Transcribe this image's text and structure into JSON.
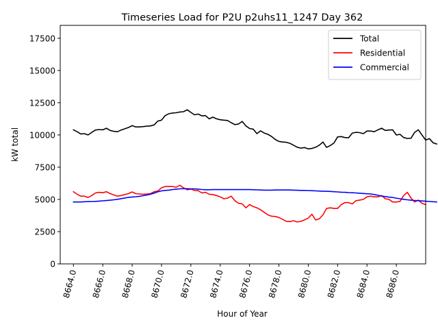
{
  "chart_data": {
    "type": "line",
    "title": "Timeseries Load for P2U p2uhs11_1247  Day 362",
    "xlabel": "Hour of Year",
    "ylabel": "kW total",
    "xlim": [
      8663.1,
      8688.0
    ],
    "ylim": [
      0,
      18500
    ],
    "x_ticks": [
      8664,
      8666,
      8668,
      8670,
      8672,
      8674,
      8676,
      8678,
      8680,
      8682,
      8684,
      8686
    ],
    "x_tick_labels": [
      "8664.0",
      "8666.0",
      "8668.0",
      "8670.0",
      "8672.0",
      "8674.0",
      "8676.0",
      "8678.0",
      "8680.0",
      "8682.0",
      "8684.0",
      "8686.0"
    ],
    "y_ticks": [
      0,
      2500,
      5000,
      7500,
      10000,
      12500,
      15000,
      17500
    ],
    "y_tick_labels": [
      "0",
      "2500",
      "5000",
      "7500",
      "10000",
      "12500",
      "15000",
      "17500"
    ],
    "legend_position": "top-right",
    "x_start": 8664.0,
    "x_step": 0.25,
    "series": [
      {
        "name": "Total",
        "color": "#000000",
        "values": [
          10400,
          10250,
          10080,
          10100,
          10000,
          10200,
          10380,
          10420,
          10400,
          10520,
          10350,
          10280,
          10250,
          10380,
          10480,
          10580,
          10720,
          10620,
          10620,
          10650,
          10680,
          10700,
          10780,
          11080,
          11150,
          11500,
          11650,
          11700,
          11720,
          11780,
          11800,
          11950,
          11750,
          11560,
          11620,
          11480,
          11500,
          11250,
          11380,
          11250,
          11180,
          11150,
          11120,
          10950,
          10800,
          10850,
          11050,
          10700,
          10500,
          10450,
          10100,
          10320,
          10150,
          10050,
          9880,
          9650,
          9500,
          9450,
          9430,
          9350,
          9200,
          9050,
          8980,
          9020,
          8920,
          8950,
          9050,
          9200,
          9450,
          9030,
          9180,
          9380,
          9850,
          9870,
          9800,
          9780,
          10150,
          10200,
          10180,
          10100,
          10300,
          10300,
          10250,
          10400,
          10520,
          10350,
          10380,
          10400,
          10000,
          10050,
          9800,
          9730,
          9750,
          10200,
          10400,
          10000,
          9600,
          9720,
          9400,
          9300
        ]
      },
      {
        "name": "Residential",
        "color": "#ff0000",
        "values": [
          5600,
          5400,
          5250,
          5250,
          5150,
          5300,
          5500,
          5550,
          5520,
          5600,
          5450,
          5350,
          5250,
          5300,
          5380,
          5450,
          5580,
          5450,
          5420,
          5400,
          5420,
          5450,
          5600,
          5650,
          5900,
          6000,
          6000,
          6000,
          5950,
          6100,
          5900,
          5750,
          5800,
          5700,
          5680,
          5500,
          5550,
          5400,
          5380,
          5300,
          5200,
          5050,
          5100,
          5250,
          4900,
          4700,
          4650,
          4350,
          4600,
          4450,
          4350,
          4200,
          4000,
          3800,
          3700,
          3680,
          3600,
          3450,
          3300,
          3280,
          3350,
          3250,
          3300,
          3420,
          3550,
          3850,
          3400,
          3500,
          3800,
          4300,
          4350,
          4300,
          4300,
          4600,
          4750,
          4750,
          4650,
          4900,
          4950,
          5000,
          5200,
          5250,
          5200,
          5200,
          5300,
          5050,
          5000,
          4800,
          4800,
          4850,
          5300,
          5550,
          5100,
          4800,
          4950,
          4700,
          4600
        ]
      },
      {
        "name": "Commercial",
        "color": "#0000ff",
        "values": [
          4800,
          4800,
          4800,
          4820,
          4830,
          4840,
          4850,
          4870,
          4890,
          4910,
          4940,
          4970,
          5010,
          5060,
          5110,
          5160,
          5190,
          5210,
          5240,
          5290,
          5340,
          5400,
          5490,
          5590,
          5660,
          5700,
          5720,
          5760,
          5800,
          5820,
          5830,
          5830,
          5820,
          5820,
          5800,
          5770,
          5750,
          5750,
          5760,
          5760,
          5760,
          5760,
          5760,
          5760,
          5760,
          5760,
          5760,
          5760,
          5760,
          5750,
          5740,
          5730,
          5720,
          5720,
          5720,
          5730,
          5730,
          5730,
          5730,
          5730,
          5720,
          5710,
          5700,
          5700,
          5690,
          5680,
          5660,
          5650,
          5630,
          5630,
          5620,
          5600,
          5580,
          5560,
          5550,
          5530,
          5520,
          5500,
          5480,
          5460,
          5440,
          5420,
          5380,
          5320,
          5260,
          5220,
          5180,
          5150,
          5100,
          5050,
          5010,
          4970,
          4940,
          4920,
          4900,
          4880,
          4860,
          4840,
          4820,
          4800
        ]
      }
    ]
  }
}
